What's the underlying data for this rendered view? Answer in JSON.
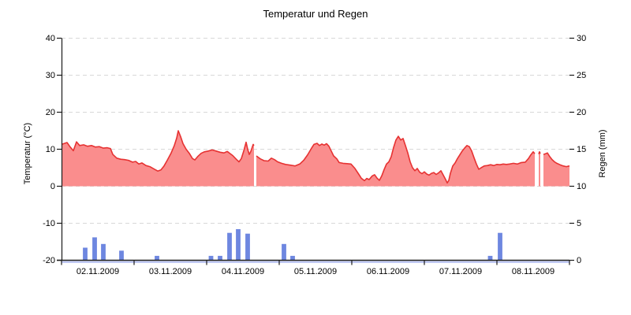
{
  "title": "Temperatur und Regen",
  "colors": {
    "temp_line": "#e63232",
    "temp_fill": "#fa8d8d",
    "rain_bar": "#6e87e0",
    "rain_baseline": "#b4bdf0",
    "axis": "#1a1a1a",
    "grid": "#d8d8d8",
    "legend_temp_dot": "#e63232",
    "legend_rain_dot": "#6e87e0"
  },
  "chart_data": {
    "type": "mixed",
    "title": "Temperatur und Regen",
    "grid": "dashed-horizontal",
    "x_axis": {
      "unit": "days",
      "range_days": [
        0,
        7
      ],
      "day_labels": [
        "02.11.2009",
        "03.11.2009",
        "04.11.2009",
        "05.11.2009",
        "06.11.2009",
        "07.11.2009",
        "08.11.2009"
      ],
      "boundary_ticks_days": [
        0,
        1,
        2,
        3,
        4,
        5,
        6,
        7
      ]
    },
    "y_left": {
      "label": "Temperatur (°C)",
      "range": [
        -20,
        40
      ],
      "ticks": [
        40,
        30,
        20,
        10,
        0,
        -10,
        -20
      ]
    },
    "y_right": {
      "label": "Regen (mm)",
      "range": [
        0,
        30
      ],
      "ticks": [
        30,
        25,
        20,
        15,
        10,
        5,
        0
      ]
    },
    "series": [
      {
        "name": "Temperatur",
        "type": "area",
        "axis": "left",
        "baseline": 0,
        "points": [
          [
            0,
            11.3
          ],
          [
            0.043,
            11.6
          ],
          [
            0.076,
            11.8
          ],
          [
            0.12,
            10.6
          ],
          [
            0.163,
            9.6
          ],
          [
            0.207,
            12
          ],
          [
            0.25,
            11
          ],
          [
            0.304,
            11.2
          ],
          [
            0.359,
            10.8
          ],
          [
            0.413,
            11
          ],
          [
            0.467,
            10.6
          ],
          [
            0.522,
            10.7
          ],
          [
            0.576,
            10.3
          ],
          [
            0.63,
            10.4
          ],
          [
            0.674,
            10.2
          ],
          [
            0.707,
            8.6
          ],
          [
            0.761,
            7.6
          ],
          [
            0.815,
            7.3
          ],
          [
            0.87,
            7.2
          ],
          [
            0.924,
            7
          ],
          [
            0.978,
            6.5
          ],
          [
            1.022,
            6.7
          ],
          [
            1.065,
            6
          ],
          [
            1.109,
            6.3
          ],
          [
            1.163,
            5.6
          ],
          [
            1.217,
            5.3
          ],
          [
            1.272,
            4.7
          ],
          [
            1.326,
            4.1
          ],
          [
            1.37,
            4.4
          ],
          [
            1.413,
            5.5
          ],
          [
            1.457,
            7
          ],
          [
            1.511,
            9
          ],
          [
            1.554,
            11
          ],
          [
            1.587,
            13
          ],
          [
            1.609,
            15
          ],
          [
            1.641,
            13.4
          ],
          [
            1.674,
            11.5
          ],
          [
            1.717,
            10
          ],
          [
            1.761,
            8.9
          ],
          [
            1.804,
            7.5
          ],
          [
            1.837,
            7.1
          ],
          [
            1.88,
            8.1
          ],
          [
            1.924,
            8.9
          ],
          [
            1.967,
            9.3
          ],
          [
            2.022,
            9.5
          ],
          [
            2.076,
            9.8
          ],
          [
            2.13,
            9.5
          ],
          [
            2.185,
            9.2
          ],
          [
            2.239,
            9
          ],
          [
            2.283,
            9.4
          ],
          [
            2.304,
            9.1
          ],
          [
            2.359,
            8.3
          ],
          [
            2.413,
            7.2
          ],
          [
            2.446,
            6.6
          ],
          [
            2.478,
            7.5
          ],
          [
            2.511,
            9.5
          ],
          [
            2.543,
            11.9
          ],
          [
            2.565,
            10
          ],
          [
            2.587,
            8.6
          ],
          [
            2.609,
            9.4
          ],
          [
            2.641,
            11.3
          ],
          [
            2.652,
            11
          ],
          null,
          [
            2.685,
            8.2
          ],
          [
            2.739,
            7.4
          ],
          [
            2.793,
            6.9
          ],
          [
            2.848,
            6.8
          ],
          [
            2.891,
            7.6
          ],
          [
            2.935,
            7.2
          ],
          [
            2.978,
            6.6
          ],
          [
            3.033,
            6.2
          ],
          [
            3.087,
            5.9
          ],
          [
            3.152,
            5.7
          ],
          [
            3.217,
            5.5
          ],
          [
            3.283,
            6
          ],
          [
            3.337,
            7
          ],
          [
            3.391,
            8.5
          ],
          [
            3.446,
            10.3
          ],
          [
            3.478,
            11.3
          ],
          [
            3.522,
            11.6
          ],
          [
            3.554,
            11
          ],
          [
            3.587,
            11.4
          ],
          [
            3.62,
            11.1
          ],
          [
            3.652,
            11.5
          ],
          [
            3.685,
            10.8
          ],
          [
            3.717,
            9.5
          ],
          [
            3.75,
            8.2
          ],
          [
            3.793,
            7.4
          ],
          [
            3.826,
            6.4
          ],
          [
            3.88,
            6.2
          ],
          [
            3.935,
            6.1
          ],
          [
            3.989,
            6
          ],
          [
            4.043,
            4.8
          ],
          [
            4.098,
            3.2
          ],
          [
            4.13,
            2.2
          ],
          [
            4.174,
            1.5
          ],
          [
            4.207,
            2.1
          ],
          [
            4.239,
            1.8
          ],
          [
            4.283,
            2.8
          ],
          [
            4.315,
            3.1
          ],
          [
            4.348,
            2.2
          ],
          [
            4.38,
            1.6
          ],
          [
            4.413,
            2.8
          ],
          [
            4.446,
            4.5
          ],
          [
            4.478,
            6
          ],
          [
            4.511,
            6.6
          ],
          [
            4.543,
            8
          ],
          [
            4.576,
            10.5
          ],
          [
            4.609,
            12.5
          ],
          [
            4.641,
            13.5
          ],
          [
            4.674,
            12.5
          ],
          [
            4.707,
            12.9
          ],
          [
            4.739,
            11
          ],
          [
            4.772,
            9
          ],
          [
            4.804,
            6.6
          ],
          [
            4.837,
            5
          ],
          [
            4.87,
            4.2
          ],
          [
            4.902,
            4.8
          ],
          [
            4.935,
            3.8
          ],
          [
            4.967,
            3.4
          ],
          [
            5,
            3.9
          ],
          [
            5.033,
            3.3
          ],
          [
            5.065,
            3
          ],
          [
            5.098,
            3.5
          ],
          [
            5.13,
            3.7
          ],
          [
            5.163,
            3.2
          ],
          [
            5.196,
            3.6
          ],
          [
            5.228,
            4.2
          ],
          [
            5.261,
            3
          ],
          [
            5.293,
            1.8
          ],
          [
            5.315,
            0.9
          ],
          [
            5.337,
            1.6
          ],
          [
            5.359,
            3.5
          ],
          [
            5.391,
            5.5
          ],
          [
            5.424,
            6.3
          ],
          [
            5.457,
            7.5
          ],
          [
            5.489,
            8.5
          ],
          [
            5.522,
            9.5
          ],
          [
            5.554,
            10.3
          ],
          [
            5.587,
            11
          ],
          [
            5.62,
            10.7
          ],
          [
            5.652,
            9.5
          ],
          [
            5.685,
            7.7
          ],
          [
            5.717,
            6
          ],
          [
            5.75,
            4.6
          ],
          [
            5.783,
            5
          ],
          [
            5.826,
            5.5
          ],
          [
            5.87,
            5.6
          ],
          [
            5.913,
            5.8
          ],
          [
            5.957,
            5.6
          ],
          [
            6,
            5.9
          ],
          [
            6.043,
            5.8
          ],
          [
            6.087,
            6
          ],
          [
            6.13,
            5.9
          ],
          [
            6.174,
            6
          ],
          [
            6.228,
            6.2
          ],
          [
            6.283,
            6
          ],
          [
            6.337,
            6.4
          ],
          [
            6.391,
            6.5
          ],
          [
            6.435,
            7.5
          ],
          [
            6.467,
            8.5
          ],
          [
            6.5,
            9.3
          ],
          [
            6.522,
            8.8
          ],
          null,
          [
            6.576,
            8.7
          ],
          [
            6.587,
            9.3
          ],
          [
            6.598,
            8.8
          ],
          null,
          [
            6.641,
            8.6
          ],
          [
            6.674,
            8.8
          ],
          [
            6.696,
            9
          ],
          [
            6.728,
            8
          ],
          [
            6.761,
            7.2
          ],
          [
            6.793,
            6.6
          ],
          [
            6.826,
            6.2
          ],
          [
            6.87,
            5.8
          ],
          [
            6.913,
            5.5
          ],
          [
            6.957,
            5.3
          ],
          [
            7,
            5.5
          ]
        ]
      },
      {
        "name": "Regen",
        "type": "bar",
        "axis": "right",
        "bar_width_days": 0.063,
        "points": [
          [
            0.326,
            1.7
          ],
          [
            0.457,
            3.1
          ],
          [
            0.576,
            2.2
          ],
          [
            0.826,
            1.3
          ],
          [
            1.315,
            0.6
          ],
          [
            2.06,
            0.6
          ],
          [
            2.185,
            0.6
          ],
          [
            2.315,
            3.7
          ],
          [
            2.435,
            4.2
          ],
          [
            2.565,
            3.6
          ],
          [
            3.065,
            2.2
          ],
          [
            3.185,
            0.6
          ],
          [
            5.908,
            0.6
          ],
          [
            6.043,
            3.7
          ]
        ]
      }
    ]
  }
}
